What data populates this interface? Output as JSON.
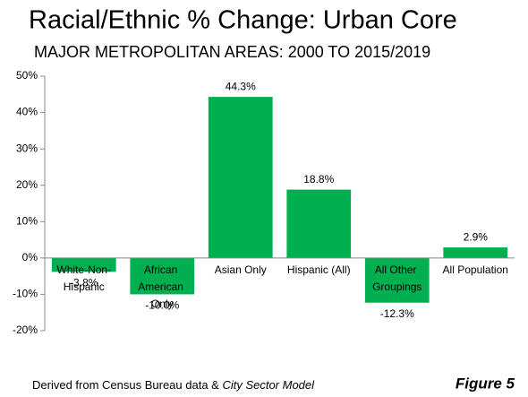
{
  "chart_data": {
    "type": "bar",
    "title": "Racial/Ethnic % Change: Urban Core",
    "subtitle": "MAJOR METROPOLITAN AREAS: 2000 TO 2015/2019",
    "categories": [
      "White-Non-Hispanic",
      "African American Only",
      "Asian Only",
      "Hispanic (All)",
      "All Other Groupings",
      "All Population"
    ],
    "values": [
      -3.8,
      -10.0,
      44.3,
      18.8,
      -12.3,
      2.9
    ],
    "value_labels": [
      "-3.8%",
      "-10.0%",
      "44.3%",
      "18.8%",
      "-12.3%",
      "2.9%"
    ],
    "color": "#00b050",
    "ylim": [
      -20,
      50
    ],
    "yticks": [
      {
        "value": -20,
        "label": "-20%"
      },
      {
        "value": -10,
        "label": "-10%"
      },
      {
        "value": 0,
        "label": "0%"
      },
      {
        "value": 10,
        "label": "10%"
      },
      {
        "value": 20,
        "label": "20%"
      },
      {
        "value": 30,
        "label": "30%"
      },
      {
        "value": 40,
        "label": "40%"
      },
      {
        "value": 50,
        "label": "50%"
      }
    ],
    "grid": false
  },
  "footer": {
    "source": "Derived from Census Bureau data & ",
    "source_model": "City Sector Model",
    "figure": "Figure 5"
  }
}
